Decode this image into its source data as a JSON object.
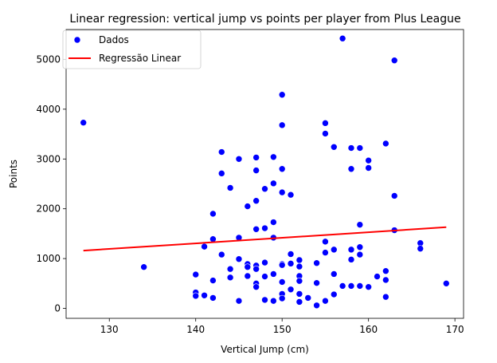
{
  "chart_data": {
    "type": "scatter",
    "title": "Linear regression: vertical jump vs points per player from Plus League",
    "xlabel": "Vertical Jump (cm)",
    "ylabel": "Points",
    "xlim": [
      125,
      171
    ],
    "ylim": [
      -200,
      5600
    ],
    "xticks": [
      130,
      140,
      150,
      160,
      170
    ],
    "yticks": [
      0,
      1000,
      2000,
      3000,
      4000,
      5000
    ],
    "grid": false,
    "legend": {
      "position": "top-left",
      "entries": [
        "Dados",
        "Regressão Linear"
      ]
    },
    "series": [
      {
        "name": "Dados",
        "kind": "scatter",
        "color": "#0000ff",
        "points": [
          [
            127,
            3730
          ],
          [
            134,
            830
          ],
          [
            140,
            680
          ],
          [
            140,
            320
          ],
          [
            140,
            250
          ],
          [
            141,
            1240
          ],
          [
            141,
            260
          ],
          [
            142,
            1900
          ],
          [
            142,
            1390
          ],
          [
            142,
            560
          ],
          [
            142,
            210
          ],
          [
            143,
            3140
          ],
          [
            143,
            2710
          ],
          [
            143,
            1080
          ],
          [
            144,
            2420
          ],
          [
            144,
            790
          ],
          [
            144,
            620
          ],
          [
            145,
            3000
          ],
          [
            145,
            1420
          ],
          [
            145,
            990
          ],
          [
            145,
            150
          ],
          [
            146,
            2050
          ],
          [
            146,
            890
          ],
          [
            146,
            830
          ],
          [
            146,
            650
          ],
          [
            147,
            3030
          ],
          [
            147,
            2770
          ],
          [
            147,
            2160
          ],
          [
            147,
            1590
          ],
          [
            147,
            860
          ],
          [
            147,
            790
          ],
          [
            147,
            500
          ],
          [
            147,
            430
          ],
          [
            148,
            2400
          ],
          [
            148,
            1610
          ],
          [
            148,
            920
          ],
          [
            148,
            640
          ],
          [
            148,
            170
          ],
          [
            149,
            3040
          ],
          [
            149,
            2510
          ],
          [
            149,
            1730
          ],
          [
            149,
            1420
          ],
          [
            149,
            690
          ],
          [
            149,
            150
          ],
          [
            150,
            4290
          ],
          [
            150,
            3680
          ],
          [
            150,
            2800
          ],
          [
            150,
            2330
          ],
          [
            150,
            890
          ],
          [
            150,
            870
          ],
          [
            150,
            530
          ],
          [
            150,
            290
          ],
          [
            150,
            200
          ],
          [
            151,
            2280
          ],
          [
            151,
            1090
          ],
          [
            151,
            900
          ],
          [
            151,
            380
          ],
          [
            152,
            970
          ],
          [
            152,
            840
          ],
          [
            152,
            650
          ],
          [
            152,
            550
          ],
          [
            152,
            290
          ],
          [
            152,
            130
          ],
          [
            153,
            210
          ],
          [
            154,
            910
          ],
          [
            154,
            510
          ],
          [
            154,
            60
          ],
          [
            155,
            3720
          ],
          [
            155,
            3510
          ],
          [
            155,
            1340
          ],
          [
            155,
            1120
          ],
          [
            155,
            150
          ],
          [
            156,
            3240
          ],
          [
            156,
            1180
          ],
          [
            156,
            690
          ],
          [
            156,
            280
          ],
          [
            157,
            5420
          ],
          [
            157,
            450
          ],
          [
            158,
            3220
          ],
          [
            158,
            2800
          ],
          [
            158,
            1180
          ],
          [
            158,
            980
          ],
          [
            158,
            450
          ],
          [
            159,
            3220
          ],
          [
            159,
            1680
          ],
          [
            159,
            1230
          ],
          [
            159,
            1080
          ],
          [
            159,
            450
          ],
          [
            160,
            2970
          ],
          [
            160,
            2820
          ],
          [
            160,
            430
          ],
          [
            161,
            640
          ],
          [
            162,
            3310
          ],
          [
            162,
            750
          ],
          [
            162,
            570
          ],
          [
            162,
            230
          ],
          [
            163,
            4980
          ],
          [
            163,
            2260
          ],
          [
            163,
            1570
          ],
          [
            166,
            1310
          ],
          [
            166,
            1200
          ],
          [
            169,
            500
          ]
        ]
      },
      {
        "name": "Regressão Linear",
        "kind": "line",
        "color": "#ff0000",
        "points": [
          [
            127,
            1160
          ],
          [
            169,
            1630
          ]
        ]
      }
    ]
  }
}
